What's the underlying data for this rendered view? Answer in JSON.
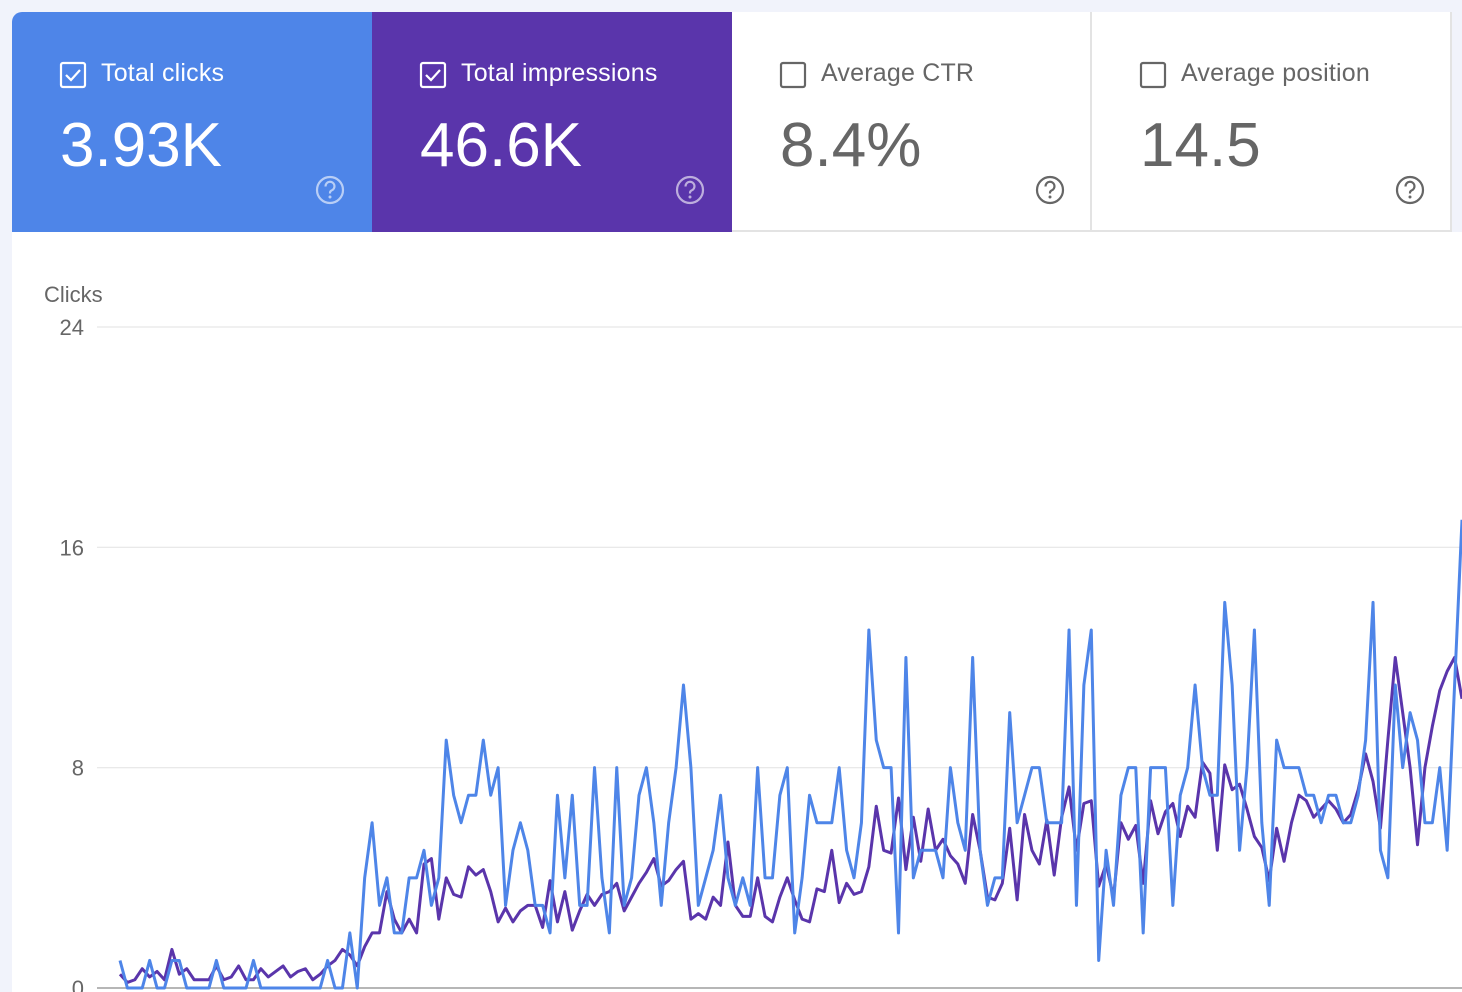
{
  "metrics": [
    {
      "label": "Total clicks",
      "value": "3.93K",
      "checked": true
    },
    {
      "label": "Total impressions",
      "value": "46.6K",
      "checked": true
    },
    {
      "label": "Average CTR",
      "value": "8.4%",
      "checked": false
    },
    {
      "label": "Average position",
      "value": "14.5",
      "checked": false
    }
  ],
  "chart_data": {
    "type": "line",
    "y_label": "Clicks",
    "ylim": [
      0,
      24
    ],
    "yticks": [
      0,
      8,
      16,
      24
    ],
    "grid": true,
    "series": [
      {
        "color": "#4e85e8",
        "values": [
          1,
          0,
          0,
          0,
          1,
          0,
          0,
          1,
          1,
          0,
          0,
          0,
          0,
          1,
          0,
          0,
          0,
          0,
          1,
          0,
          0,
          0,
          0,
          0,
          0,
          0,
          0,
          0,
          1,
          0,
          0,
          2,
          0,
          4,
          6,
          3,
          4,
          2,
          2,
          4,
          4,
          5,
          3,
          4,
          9,
          7,
          6,
          7,
          7,
          9,
          7,
          8,
          3,
          5,
          6,
          5,
          3,
          3,
          2,
          7,
          4,
          7,
          3,
          3,
          8,
          4,
          2,
          8,
          3,
          4,
          7,
          8,
          6,
          3,
          6,
          8,
          11,
          8,
          3,
          4,
          5,
          7,
          4,
          3,
          4,
          3,
          8,
          4,
          4,
          7,
          8,
          2,
          4,
          7,
          6,
          6,
          6,
          8,
          5,
          4,
          6,
          13,
          9,
          8,
          8,
          2,
          12,
          4,
          5,
          5,
          5,
          4,
          8,
          6,
          5,
          12,
          5,
          3,
          4,
          4,
          10,
          6,
          7,
          8,
          8,
          6,
          6,
          6,
          13,
          3,
          11,
          13,
          1,
          5,
          3,
          7,
          8,
          8,
          2,
          8,
          8,
          8,
          3,
          7,
          8,
          11,
          8,
          7,
          7,
          14,
          11,
          5,
          8,
          13,
          6,
          3,
          9,
          8,
          8,
          8,
          7,
          7,
          6,
          7,
          7,
          6,
          6,
          7,
          9,
          14,
          5,
          4,
          11,
          8,
          10,
          9,
          6,
          6,
          8,
          5,
          11,
          17
        ]
      },
      {
        "color": "#5a35ab",
        "values": [
          0.5,
          0.2,
          0.3,
          0.7,
          0.4,
          0.6,
          0.3,
          1.4,
          0.5,
          0.7,
          0.3,
          0.3,
          0.3,
          0.8,
          0.3,
          0.4,
          0.8,
          0.3,
          0.3,
          0.7,
          0.4,
          0.6,
          0.8,
          0.4,
          0.6,
          0.7,
          0.3,
          0.5,
          0.8,
          1.0,
          1.4,
          1.2,
          0.8,
          1.5,
          2,
          2,
          3.5,
          2.5,
          2,
          2.5,
          2,
          4.5,
          4.7,
          2.5,
          4,
          3.4,
          3.3,
          4.4,
          4.1,
          4.3,
          3.5,
          2.4,
          2.9,
          2.4,
          2.8,
          3.0,
          3.0,
          2.2,
          3.9,
          2.4,
          3.5,
          2.1,
          2.8,
          3.4,
          3.0,
          3.4,
          3.5,
          3.8,
          2.8,
          3.3,
          3.8,
          4.2,
          4.7,
          3.7,
          3.9,
          4.3,
          4.6,
          2.5,
          2.7,
          2.5,
          3.3,
          3.0,
          5.3,
          3.0,
          2.6,
          2.6,
          4.0,
          2.6,
          2.4,
          3.3,
          4.0,
          3.2,
          2.5,
          2.4,
          3.6,
          3.5,
          5.0,
          3.1,
          3.8,
          3.4,
          3.5,
          4.4,
          6.6,
          5.0,
          4.9,
          6.9,
          4.3,
          6.2,
          4.6,
          6.5,
          5.0,
          5.4,
          4.8,
          4.5,
          3.8,
          6.3,
          5.0,
          3.3,
          3.2,
          3.8,
          5.8,
          3.2,
          6.3,
          5.0,
          4.5,
          6.1,
          4.1,
          6.2,
          7.3,
          5.0,
          6.7,
          6.8,
          3.7,
          4.5,
          3.3,
          6.0,
          5.4,
          5.9,
          3.8,
          6.8,
          5.6,
          6.4,
          6.7,
          5.5,
          6.6,
          6.2,
          8.2,
          7.8,
          5.0,
          8.1,
          7.2,
          7.4,
          6.5,
          5.5,
          5.1,
          3.9,
          5.8,
          4.6,
          6.0,
          7.0,
          6.8,
          6.2,
          6.5,
          6.8,
          6.5,
          6.0,
          6.3,
          7.2,
          8.5,
          7.5,
          5.8,
          9.0,
          12.0,
          10.0,
          8.0,
          5.2,
          8.0,
          9.5,
          10.8,
          11.5,
          12.0,
          10.5
        ]
      }
    ]
  }
}
